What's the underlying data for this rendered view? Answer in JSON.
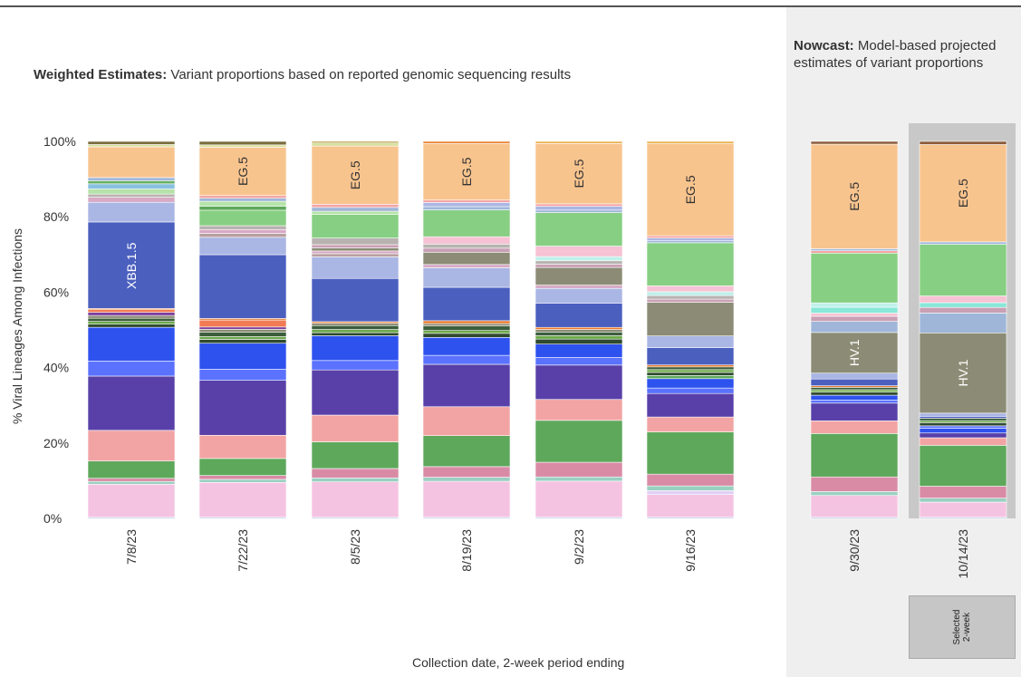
{
  "chart_data": {
    "type": "bar",
    "stacked": true,
    "weighted_title_bold": "Weighted Estimates:",
    "weighted_title_rest": " Variant proportions based on reported genomic sequencing results",
    "nowcast_title_bold": "Nowcast:",
    "nowcast_title_rest": " Model-based projected estimates of variant proportions",
    "ylabel": "% Viral Lineages Among Infections",
    "xlabel": "Collection date, 2-week period ending",
    "y_ticks": [
      "0%",
      "20%",
      "40%",
      "60%",
      "80%",
      "100%"
    ],
    "ylim": [
      0,
      100
    ],
    "selected_label": "Selected\n2-week",
    "colors": {
      "panel_bg": "#efefef",
      "selected_bg": "#c8c8c8"
    },
    "categories": [
      "7/8/23",
      "7/22/23",
      "8/5/23",
      "8/19/23",
      "9/2/23",
      "9/16/23",
      "9/30/23",
      "10/14/23"
    ],
    "nowcast_categories": [
      "9/30/23",
      "10/14/23"
    ],
    "stacks": [
      {
        "date": "7/8/23",
        "segments": [
          {
            "value": 0.3,
            "color": "#b7c9e8"
          },
          {
            "value": 8.4,
            "color": "#f5c3e2"
          },
          {
            "value": 0.7,
            "color": "#9ad0c1"
          },
          {
            "value": 0.8,
            "color": "#d98ba6"
          },
          {
            "value": 4.4,
            "color": "#5ea85b"
          },
          {
            "value": 7.8,
            "color": "#f2a4a4"
          },
          {
            "value": 13.8,
            "color": "#5840a8"
          },
          {
            "value": 3.8,
            "color": "#5b72ff"
          },
          {
            "value": 8.6,
            "color": "#2e52ee"
          },
          {
            "value": 0.8,
            "color": "#2f4a2f"
          },
          {
            "value": 0.7,
            "color": "#6da84a"
          },
          {
            "value": 0.8,
            "color": "#3b5e3b"
          },
          {
            "value": 0.7,
            "color": "#8c8c76"
          },
          {
            "value": 0.8,
            "color": "#7d3fa0"
          },
          {
            "value": 0.7,
            "color": "#f07b55"
          },
          {
            "value": 0.3,
            "color": "#e87b2d",
            "label": "XBB.1.5"
          },
          {
            "value": 22.0,
            "color": "#4b5fbf",
            "label": "XBB.1.5"
          },
          {
            "value": 5.0,
            "color": "#aab6e4"
          },
          {
            "value": 1.3,
            "color": "#d8aac6"
          },
          {
            "value": 0.8,
            "color": "#b8b3b0"
          },
          {
            "value": 1.3,
            "color": "#b6e3a9"
          },
          {
            "value": 1.3,
            "color": "#88c0e0"
          },
          {
            "value": 0.8,
            "color": "#66b066"
          },
          {
            "value": 0.8,
            "color": "#9fb6d9"
          },
          {
            "value": 7.8,
            "color": "#f8c48e"
          },
          {
            "value": 0.6,
            "color": "#d9e1a0"
          },
          {
            "value": 0.8,
            "color": "#7a6e3e"
          }
        ]
      },
      {
        "date": "7/22/23",
        "segments": [
          {
            "value": 0.3,
            "color": "#b7c9e8"
          },
          {
            "value": 9.0,
            "color": "#f5c3e2"
          },
          {
            "value": 0.8,
            "color": "#9ad0c1"
          },
          {
            "value": 1.0,
            "color": "#d98ba6"
          },
          {
            "value": 4.4,
            "color": "#5ea85b"
          },
          {
            "value": 6.0,
            "color": "#f2a4a4"
          },
          {
            "value": 14.2,
            "color": "#5840a8"
          },
          {
            "value": 2.9,
            "color": "#5b72ff"
          },
          {
            "value": 6.7,
            "color": "#2e52ee"
          },
          {
            "value": 1.0,
            "color": "#2f4a2f"
          },
          {
            "value": 0.7,
            "color": "#6da84a"
          },
          {
            "value": 1.2,
            "color": "#3b5e3b"
          },
          {
            "value": 0.7,
            "color": "#8c8c76"
          },
          {
            "value": 0.6,
            "color": "#7d3fa0"
          },
          {
            "value": 1.8,
            "color": "#f07b55"
          },
          {
            "value": 0.4,
            "color": "#e87b2d"
          },
          {
            "value": 16.5,
            "color": "#4b5fbf"
          },
          {
            "value": 4.5,
            "color": "#aab6e4"
          },
          {
            "value": 1.0,
            "color": "#b8a0a0"
          },
          {
            "value": 1.0,
            "color": "#d8aac6"
          },
          {
            "value": 1.0,
            "color": "#b8b3b0"
          },
          {
            "value": 4.0,
            "color": "#87cf82"
          },
          {
            "value": 1.0,
            "color": "#5ea85b"
          },
          {
            "value": 1.3,
            "color": "#b6e3a9"
          },
          {
            "value": 0.8,
            "color": "#9fb6d9"
          },
          {
            "value": 0.7,
            "color": "#f2a4a4"
          },
          {
            "value": 12.5,
            "color": "#f8c48e",
            "label": "EG.5"
          },
          {
            "value": 0.6,
            "color": "#d9e1a0"
          },
          {
            "value": 0.9,
            "color": "#7a6e3e"
          }
        ]
      },
      {
        "date": "8/5/23",
        "segments": [
          {
            "value": 0.3,
            "color": "#b7c9e8"
          },
          {
            "value": 9.0,
            "color": "#f5c3e2"
          },
          {
            "value": 1.0,
            "color": "#9ad0c1"
          },
          {
            "value": 2.4,
            "color": "#d98ba6"
          },
          {
            "value": 6.8,
            "color": "#5ea85b"
          },
          {
            "value": 6.8,
            "color": "#f2a4a4"
          },
          {
            "value": 11.5,
            "color": "#5840a8"
          },
          {
            "value": 2.4,
            "color": "#5b72ff"
          },
          {
            "value": 6.3,
            "color": "#2e52ee"
          },
          {
            "value": 0.8,
            "color": "#2f4a2f"
          },
          {
            "value": 0.8,
            "color": "#6da84a"
          },
          {
            "value": 1.0,
            "color": "#3b5e3b"
          },
          {
            "value": 0.6,
            "color": "#8c8c76"
          },
          {
            "value": 0.4,
            "color": "#e87b2d"
          },
          {
            "value": 11.0,
            "color": "#4b5fbf"
          },
          {
            "value": 5.5,
            "color": "#aab6e4"
          },
          {
            "value": 0.8,
            "color": "#b8a0a0"
          },
          {
            "value": 0.7,
            "color": "#d8aac6"
          },
          {
            "value": 0.8,
            "color": "#8c8c76"
          },
          {
            "value": 0.8,
            "color": "#c9a0b5"
          },
          {
            "value": 1.7,
            "color": "#b8b3b0"
          },
          {
            "value": 6.0,
            "color": "#87cf82"
          },
          {
            "value": 0.8,
            "color": "#b6e3a9"
          },
          {
            "value": 1.0,
            "color": "#9fb6d9"
          },
          {
            "value": 0.8,
            "color": "#f2a4a4"
          },
          {
            "value": 14.8,
            "color": "#f8c48e",
            "label": "EG.5"
          },
          {
            "value": 0.8,
            "color": "#d9e1a0"
          },
          {
            "value": 0.4,
            "color": "#b29a3a"
          }
        ]
      },
      {
        "date": "8/19/23",
        "segments": [
          {
            "value": 0.3,
            "color": "#b7c9e8"
          },
          {
            "value": 8.8,
            "color": "#f5c3e2"
          },
          {
            "value": 1.0,
            "color": "#9ad0c1"
          },
          {
            "value": 2.6,
            "color": "#d98ba6"
          },
          {
            "value": 7.6,
            "color": "#5ea85b"
          },
          {
            "value": 7.1,
            "color": "#f2a4a4"
          },
          {
            "value": 10.4,
            "color": "#5840a8"
          },
          {
            "value": 2.2,
            "color": "#5b72ff"
          },
          {
            "value": 4.4,
            "color": "#2e52ee"
          },
          {
            "value": 1.0,
            "color": "#2f4a2f"
          },
          {
            "value": 0.7,
            "color": "#6da84a"
          },
          {
            "value": 1.1,
            "color": "#3b5e3b"
          },
          {
            "value": 0.6,
            "color": "#8c8c76"
          },
          {
            "value": 0.7,
            "color": "#e87b2d"
          },
          {
            "value": 8.2,
            "color": "#4b5fbf"
          },
          {
            "value": 4.8,
            "color": "#aab6e4"
          },
          {
            "value": 0.8,
            "color": "#d8aac6"
          },
          {
            "value": 3.0,
            "color": "#8c8c76"
          },
          {
            "value": 1.0,
            "color": "#c9a0b5"
          },
          {
            "value": 1.0,
            "color": "#b8b3b0"
          },
          {
            "value": 1.8,
            "color": "#f6c2d4"
          },
          {
            "value": 6.6,
            "color": "#87cf82"
          },
          {
            "value": 0.8,
            "color": "#9fb6d9"
          },
          {
            "value": 1.0,
            "color": "#aab6e4"
          },
          {
            "value": 0.6,
            "color": "#f2a4a4"
          },
          {
            "value": 13.9,
            "color": "#f8c48e",
            "label": "EG.5"
          },
          {
            "value": 0.5,
            "color": "#e87b2d"
          }
        ]
      },
      {
        "date": "9/2/23",
        "segments": [
          {
            "value": 0.3,
            "color": "#b7c9e8"
          },
          {
            "value": 8.6,
            "color": "#f5c3e2"
          },
          {
            "value": 1.0,
            "color": "#9ad0c1"
          },
          {
            "value": 3.5,
            "color": "#d98ba6"
          },
          {
            "value": 10.0,
            "color": "#5ea85b"
          },
          {
            "value": 5.0,
            "color": "#f2a4a4"
          },
          {
            "value": 8.2,
            "color": "#5840a8"
          },
          {
            "value": 1.8,
            "color": "#5b72ff"
          },
          {
            "value": 3.2,
            "color": "#2e52ee"
          },
          {
            "value": 1.2,
            "color": "#2f4a2f"
          },
          {
            "value": 0.8,
            "color": "#6da84a"
          },
          {
            "value": 0.9,
            "color": "#3b5e3b"
          },
          {
            "value": 0.6,
            "color": "#8c8c76"
          },
          {
            "value": 0.5,
            "color": "#e87b2d"
          },
          {
            "value": 5.8,
            "color": "#4b5fbf"
          },
          {
            "value": 3.5,
            "color": "#aab6e4"
          },
          {
            "value": 0.8,
            "color": "#d8aac6"
          },
          {
            "value": 4.2,
            "color": "#8c8c76"
          },
          {
            "value": 0.8,
            "color": "#c9a0b5"
          },
          {
            "value": 0.8,
            "color": "#b8b3b0"
          },
          {
            "value": 1.0,
            "color": "#c0f0ea"
          },
          {
            "value": 2.5,
            "color": "#f6c2d4"
          },
          {
            "value": 8.0,
            "color": "#87cf82"
          },
          {
            "value": 0.6,
            "color": "#9fb6d9"
          },
          {
            "value": 0.9,
            "color": "#aab6e4"
          },
          {
            "value": 0.6,
            "color": "#f2a4a4"
          },
          {
            "value": 14.4,
            "color": "#f8c48e",
            "label": "EG.5"
          },
          {
            "value": 0.5,
            "color": "#e8b050"
          }
        ]
      },
      {
        "date": "9/16/23",
        "segments": [
          {
            "value": 0.3,
            "color": "#b7c9e8"
          },
          {
            "value": 5.8,
            "color": "#f5c3e2"
          },
          {
            "value": 1.0,
            "color": "#e0d0f5"
          },
          {
            "value": 1.2,
            "color": "#9ad0c1"
          },
          {
            "value": 3.0,
            "color": "#d98ba6"
          },
          {
            "value": 10.8,
            "color": "#5ea85b"
          },
          {
            "value": 3.8,
            "color": "#f2a4a4"
          },
          {
            "value": 6.0,
            "color": "#5840a8"
          },
          {
            "value": 1.4,
            "color": "#5b72ff"
          },
          {
            "value": 2.4,
            "color": "#2e52ee"
          },
          {
            "value": 0.8,
            "color": "#5ea85b"
          },
          {
            "value": 0.8,
            "color": "#2f4a2f"
          },
          {
            "value": 0.7,
            "color": "#6da84a"
          },
          {
            "value": 0.7,
            "color": "#3b5e3b"
          },
          {
            "value": 0.5,
            "color": "#e87b2d"
          },
          {
            "value": 4.4,
            "color": "#4b5fbf"
          },
          {
            "value": 3.0,
            "color": "#aab6e4"
          },
          {
            "value": 8.6,
            "color": "#8c8c76"
          },
          {
            "value": 0.8,
            "color": "#c9a0b5"
          },
          {
            "value": 0.9,
            "color": "#b8b3b0"
          },
          {
            "value": 1.0,
            "color": "#c0f0ea"
          },
          {
            "value": 1.5,
            "color": "#f6c2d4"
          },
          {
            "value": 11.0,
            "color": "#87cf82"
          },
          {
            "value": 0.5,
            "color": "#9fb6d9"
          },
          {
            "value": 0.7,
            "color": "#aab6e4"
          },
          {
            "value": 0.6,
            "color": "#f2a4a4"
          },
          {
            "value": 23.5,
            "color": "#f8c48e",
            "label": "EG.5"
          },
          {
            "value": 0.6,
            "color": "#e8b050"
          }
        ]
      },
      {
        "date": "9/30/23",
        "segments": [
          {
            "value": 0.3,
            "color": "#b7c9e8"
          },
          {
            "value": 5.5,
            "color": "#f5c3e2"
          },
          {
            "value": 1.0,
            "color": "#9ad0c1"
          },
          {
            "value": 3.7,
            "color": "#d98ba6"
          },
          {
            "value": 11.0,
            "color": "#5ea85b"
          },
          {
            "value": 3.2,
            "color": "#f2a4a4"
          },
          {
            "value": 4.5,
            "color": "#5840a8"
          },
          {
            "value": 0.8,
            "color": "#5b72ff"
          },
          {
            "value": 1.2,
            "color": "#2e52ee"
          },
          {
            "value": 0.8,
            "color": "#2f4a2f"
          },
          {
            "value": 0.6,
            "color": "#6da84a"
          },
          {
            "value": 0.6,
            "color": "#3b5e3b"
          },
          {
            "value": 0.4,
            "color": "#e87b2d"
          },
          {
            "value": 1.7,
            "color": "#4b5fbf"
          },
          {
            "value": 1.5,
            "color": "#aab6e4"
          },
          {
            "value": 10.3,
            "color": "#8c8c76",
            "label": "HV.1"
          },
          {
            "value": 2.8,
            "color": "#9fb6d9"
          },
          {
            "value": 1.3,
            "color": "#c9a0b5"
          },
          {
            "value": 0.8,
            "color": "#f6c2d4"
          },
          {
            "value": 1.5,
            "color": "#88e8d8"
          },
          {
            "value": 1.1,
            "color": "#c0f0ea"
          },
          {
            "value": 12.6,
            "color": "#87cf82"
          },
          {
            "value": 0.6,
            "color": "#f2a4a4"
          },
          {
            "value": 0.5,
            "color": "#9fb6d9"
          },
          {
            "value": 26.5,
            "color": "#f8c48e",
            "label": "EG.5"
          },
          {
            "value": 0.7,
            "color": "#8a5a3a"
          }
        ]
      },
      {
        "date": "10/14/23",
        "segments": [
          {
            "value": 0.3,
            "color": "#b7c9e8"
          },
          {
            "value": 3.8,
            "color": "#f5c3e2"
          },
          {
            "value": 1.0,
            "color": "#9ad0c1"
          },
          {
            "value": 3.0,
            "color": "#d98ba6"
          },
          {
            "value": 10.3,
            "color": "#5ea85b"
          },
          {
            "value": 1.9,
            "color": "#f2a4a4"
          },
          {
            "value": 1.2,
            "color": "#5840a8"
          },
          {
            "value": 1.2,
            "color": "#2e52ee"
          },
          {
            "value": 0.6,
            "color": "#5b72ff"
          },
          {
            "value": 0.8,
            "color": "#2f4a2f"
          },
          {
            "value": 0.5,
            "color": "#6da84a"
          },
          {
            "value": 0.6,
            "color": "#3b5e3b"
          },
          {
            "value": 0.5,
            "color": "#4b5fbf"
          },
          {
            "value": 0.8,
            "color": "#aab6e4"
          },
          {
            "value": 20.2,
            "color": "#8c8c76",
            "label": "HV.1"
          },
          {
            "value": 5.0,
            "color": "#9fb6d9"
          },
          {
            "value": 1.4,
            "color": "#c9a0b5"
          },
          {
            "value": 1.2,
            "color": "#88e8d8"
          },
          {
            "value": 1.7,
            "color": "#f6c2d4"
          },
          {
            "value": 13.0,
            "color": "#87cf82"
          },
          {
            "value": 0.6,
            "color": "#9fb6d9"
          },
          {
            "value": 24.5,
            "color": "#f8c48e",
            "label": "EG.5"
          },
          {
            "value": 0.8,
            "color": "#8a5a3a"
          }
        ]
      }
    ]
  }
}
